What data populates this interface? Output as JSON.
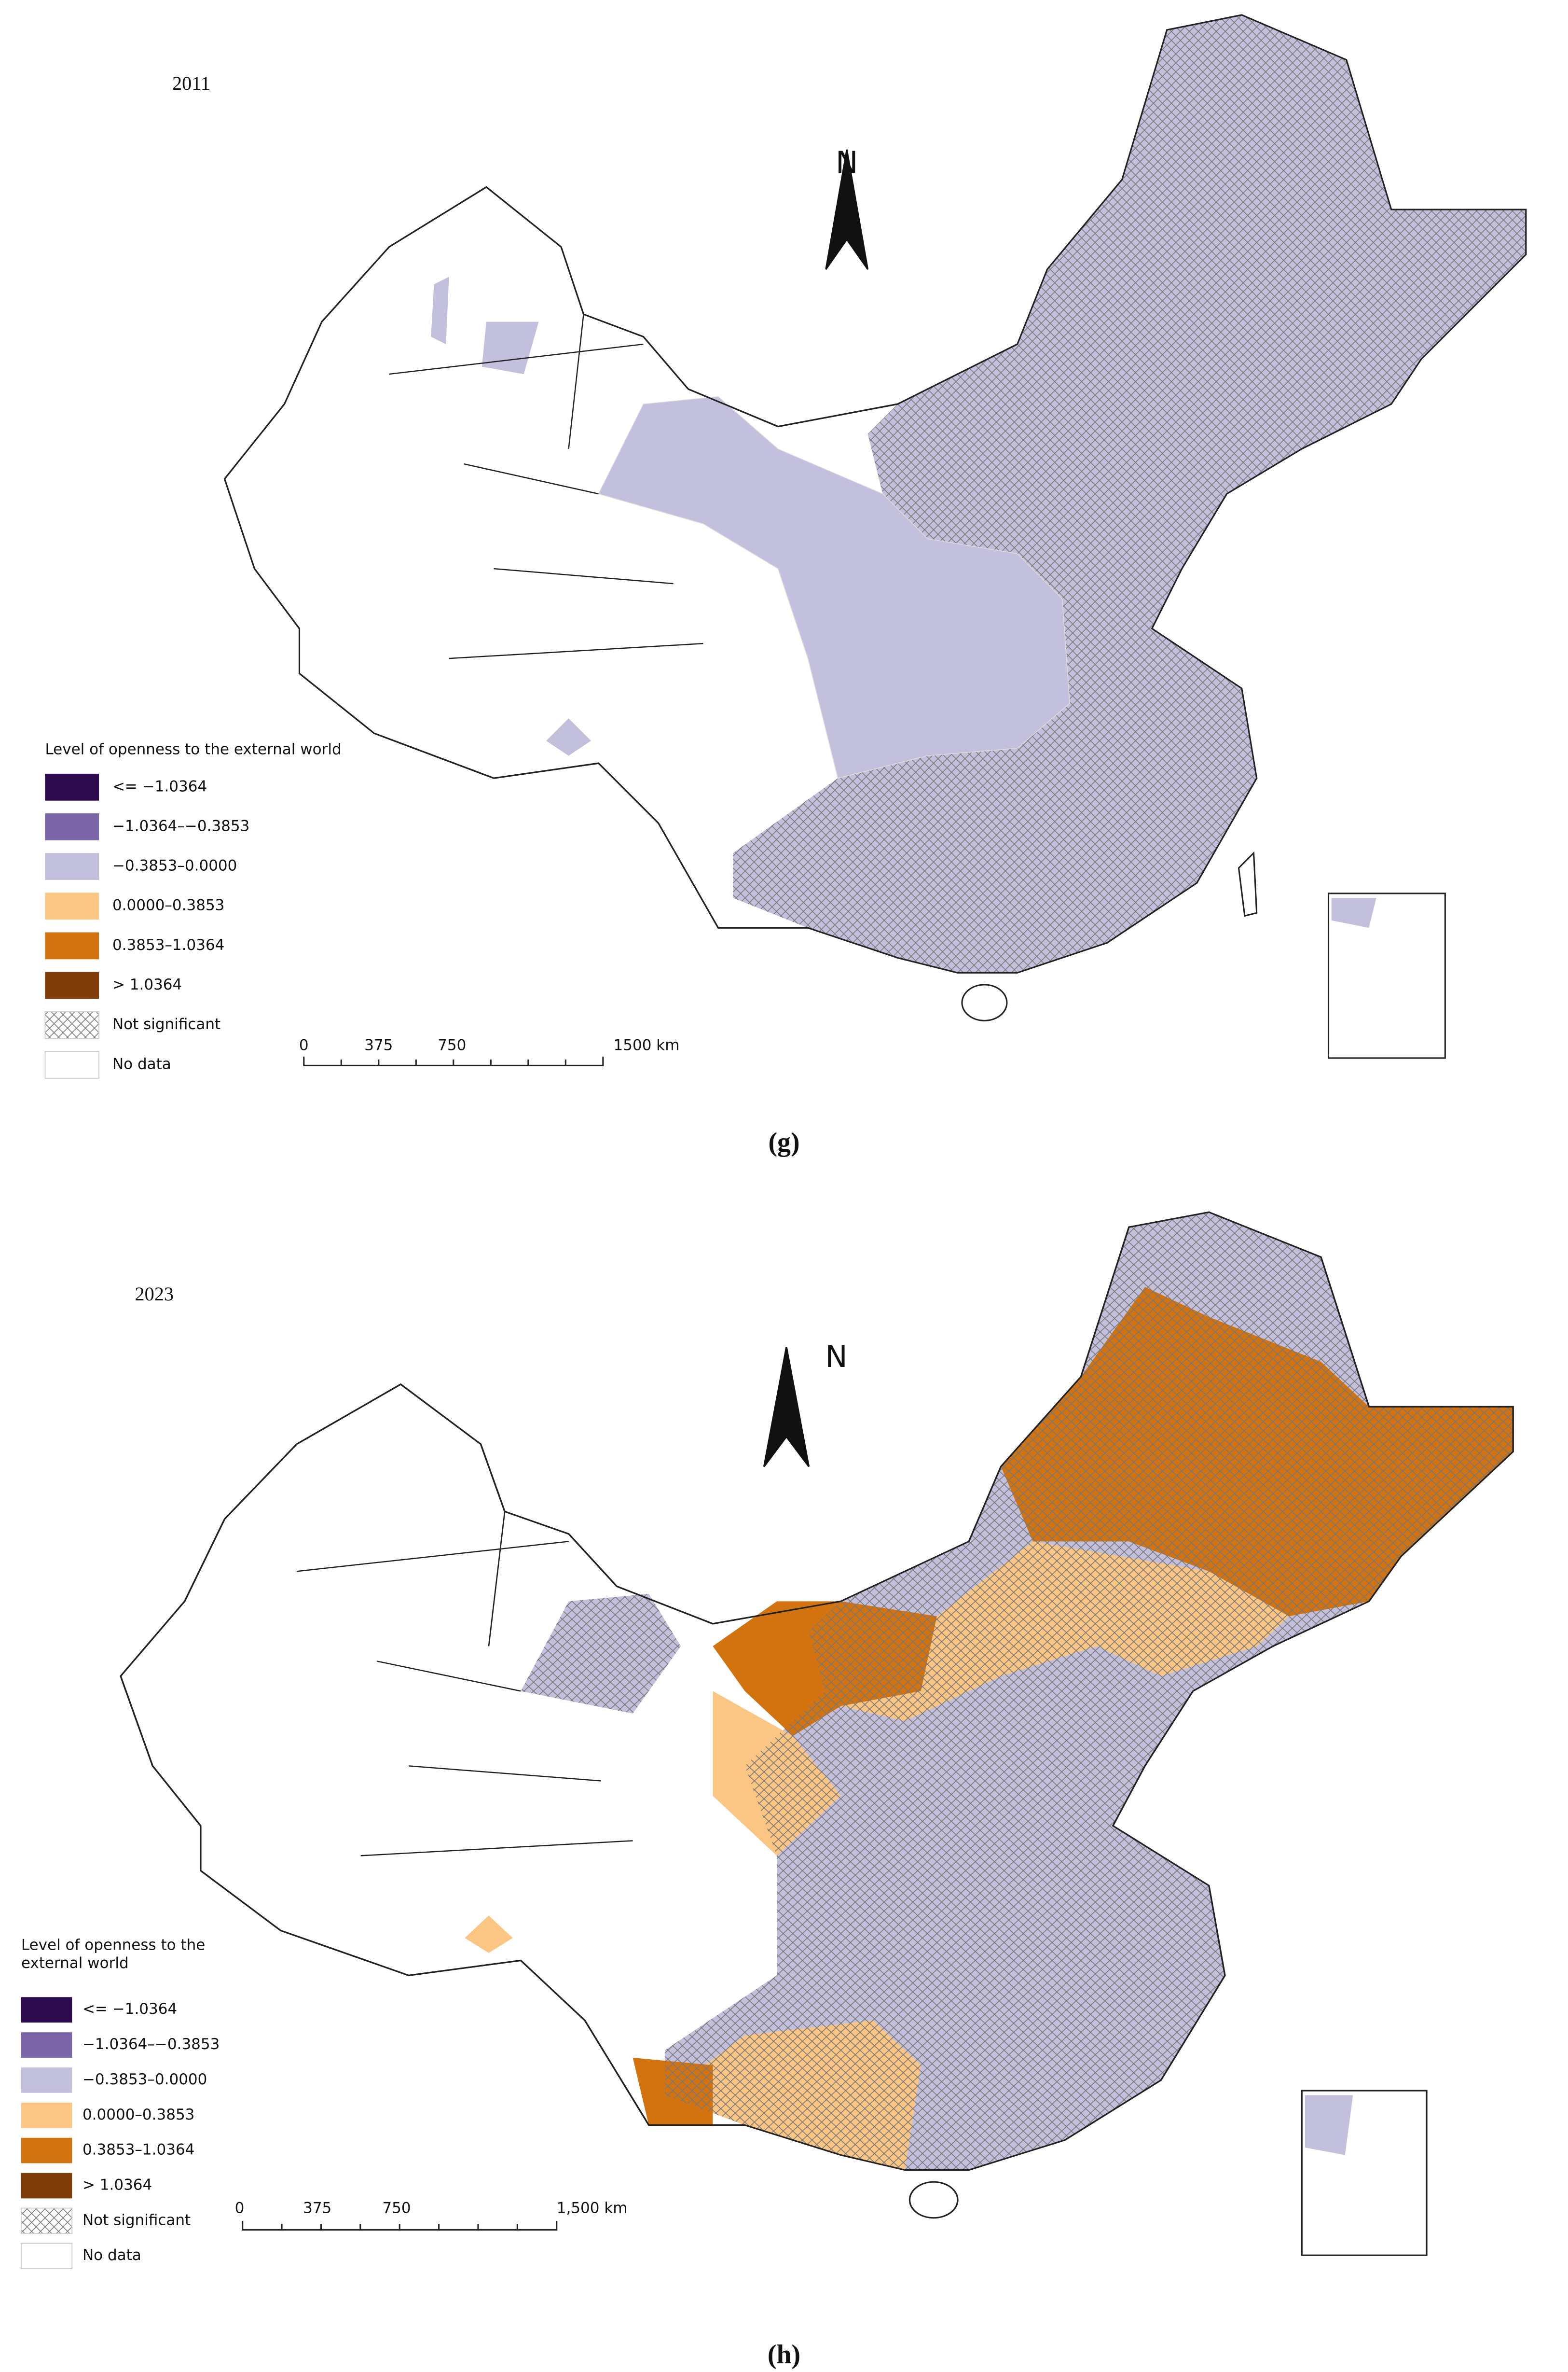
{
  "panels": [
    {
      "year": "2011",
      "north": "N",
      "caption": "(g)",
      "legend_title": "Level of openness to the external world",
      "legend": [
        {
          "label": "<= −1.0364",
          "color": "#2d0a4e"
        },
        {
          "label": "−1.0364–−0.3853",
          "color": "#7b64a8"
        },
        {
          "label": "−0.3853–0.0000",
          "color": "#c3c0dd"
        },
        {
          "label": "0.0000–0.3853",
          "color": "#fbc683"
        },
        {
          "label": "0.3853–1.0364",
          "color": "#d2730f"
        },
        {
          "label": "> 1.0364",
          "color": "#7f3b08"
        },
        {
          "label": "Not significant",
          "pattern": "hatch"
        },
        {
          "label": "No data",
          "color": "#ffffff"
        }
      ],
      "scale": [
        "0",
        "375",
        "750",
        "1500 km"
      ]
    },
    {
      "year": "2023",
      "north": "N",
      "caption": "(h)",
      "legend_title": "Level of openness to the external world",
      "legend": [
        {
          "label": "<= −1.0364",
          "color": "#2d0a4e"
        },
        {
          "label": "−1.0364–−0.3853",
          "color": "#7b64a8"
        },
        {
          "label": "−0.3853–0.0000",
          "color": "#c3c0dd"
        },
        {
          "label": "0.0000–0.3853",
          "color": "#fbc683"
        },
        {
          "label": "0.3853–1.0364",
          "color": "#d2730f"
        },
        {
          "label": "> 1.0364",
          "color": "#7f3b08"
        },
        {
          "label": "Not significant",
          "pattern": "hatch"
        },
        {
          "label": "No data",
          "color": "#ffffff"
        }
      ],
      "scale": [
        "0",
        "375",
        "750",
        "1,500 km"
      ]
    }
  ]
}
